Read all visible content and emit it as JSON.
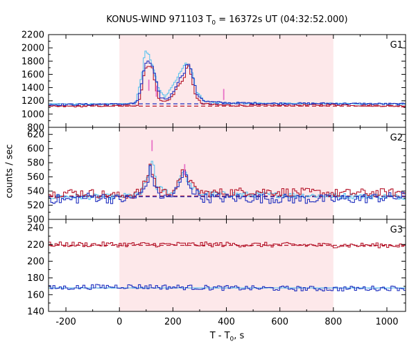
{
  "chart_data": {
    "type": "line",
    "title_main": "KONUS-WIND 971103 T",
    "title_sub": "0",
    "title_rest": " = 16372s UT (04:32:52.000)",
    "ylabel": "counts / sec",
    "xlabel_main": "T - T",
    "xlabel_sub": "0",
    "xlabel_rest": ", s",
    "xlim": [
      -265,
      1070
    ],
    "xticks": [
      -200,
      0,
      200,
      400,
      600,
      800,
      1000
    ],
    "shaded_interval": [
      0,
      800
    ],
    "shade_color": "#fde8ea",
    "colors": {
      "red": "#b5162b",
      "blue": "#1f2fbf",
      "cyan": "#5cc3ee",
      "magenta": "#e870c6"
    },
    "panels": [
      {
        "name": "G1",
        "ylim": [
          800,
          2200
        ],
        "yticks": [
          800,
          1000,
          1200,
          1400,
          1600,
          1800,
          2000,
          2200
        ],
        "bg_levels": {
          "red": 1120,
          "blue": 1155
        },
        "red_points": [
          [
            -265,
            1110
          ],
          [
            -150,
            1120
          ],
          [
            -50,
            1125
          ],
          [
            0,
            1125
          ],
          [
            50,
            1130
          ],
          [
            70,
            1140
          ],
          [
            85,
            1400
          ],
          [
            95,
            1700
          ],
          [
            110,
            1730
          ],
          [
            125,
            1680
          ],
          [
            135,
            1420
          ],
          [
            150,
            1200
          ],
          [
            175,
            1190
          ],
          [
            200,
            1270
          ],
          [
            215,
            1400
          ],
          [
            230,
            1480
          ],
          [
            245,
            1560
          ],
          [
            255,
            1780
          ],
          [
            270,
            1560
          ],
          [
            285,
            1250
          ],
          [
            310,
            1160
          ],
          [
            350,
            1140
          ],
          [
            420,
            1130
          ],
          [
            600,
            1130
          ],
          [
            800,
            1140
          ],
          [
            1070,
            1120
          ]
        ],
        "blue_points": [
          [
            -265,
            1140
          ],
          [
            -150,
            1145
          ],
          [
            -50,
            1150
          ],
          [
            0,
            1150
          ],
          [
            50,
            1160
          ],
          [
            70,
            1200
          ],
          [
            85,
            1500
          ],
          [
            95,
            1760
          ],
          [
            110,
            1800
          ],
          [
            125,
            1700
          ],
          [
            140,
            1460
          ],
          [
            155,
            1240
          ],
          [
            180,
            1230
          ],
          [
            200,
            1320
          ],
          [
            215,
            1460
          ],
          [
            230,
            1560
          ],
          [
            245,
            1640
          ],
          [
            255,
            1800
          ],
          [
            270,
            1640
          ],
          [
            290,
            1300
          ],
          [
            320,
            1190
          ],
          [
            400,
            1170
          ],
          [
            600,
            1160
          ],
          [
            800,
            1160
          ],
          [
            1070,
            1150
          ]
        ],
        "cyan_points": [
          [
            -265,
            1150
          ],
          [
            -100,
            1150
          ],
          [
            0,
            1150
          ],
          [
            60,
            1165
          ],
          [
            85,
            1600
          ],
          [
            95,
            1970
          ],
          [
            110,
            1900
          ],
          [
            125,
            1720
          ],
          [
            145,
            1400
          ],
          [
            170,
            1250
          ],
          [
            210,
            1500
          ],
          [
            230,
            1650
          ],
          [
            250,
            1780
          ],
          [
            270,
            1660
          ],
          [
            290,
            1330
          ],
          [
            320,
            1190
          ],
          [
            400,
            1165
          ],
          [
            800,
            1160
          ],
          [
            1070,
            1150
          ]
        ],
        "magenta_spikes": [
          [
            110,
            1520
          ],
          [
            138,
            1430
          ],
          [
            390,
            1380
          ]
        ]
      },
      {
        "name": "G2",
        "ylim": [
          500,
          630
        ],
        "yticks": [
          500,
          520,
          540,
          560,
          580,
          600,
          620
        ],
        "bg_levels": {
          "red": 533,
          "blue": 532
        },
        "red_points": [
          [
            -265,
            535
          ],
          [
            -200,
            538
          ],
          [
            -100,
            537
          ],
          [
            0,
            533
          ],
          [
            50,
            535
          ],
          [
            80,
            540
          ],
          [
            100,
            555
          ],
          [
            115,
            575
          ],
          [
            125,
            565
          ],
          [
            140,
            545
          ],
          [
            170,
            538
          ],
          [
            200,
            540
          ],
          [
            230,
            555
          ],
          [
            240,
            575
          ],
          [
            255,
            560
          ],
          [
            280,
            543
          ],
          [
            320,
            537
          ],
          [
            500,
            540
          ],
          [
            800,
            537
          ],
          [
            1070,
            538
          ]
        ],
        "blue_points": [
          [
            -265,
            530
          ],
          [
            -200,
            527
          ],
          [
            -100,
            532
          ],
          [
            0,
            528
          ],
          [
            50,
            530
          ],
          [
            80,
            535
          ],
          [
            100,
            548
          ],
          [
            115,
            570
          ],
          [
            125,
            560
          ],
          [
            140,
            538
          ],
          [
            170,
            530
          ],
          [
            200,
            535
          ],
          [
            230,
            550
          ],
          [
            240,
            570
          ],
          [
            255,
            555
          ],
          [
            280,
            538
          ],
          [
            320,
            530
          ],
          [
            500,
            530
          ],
          [
            800,
            528
          ],
          [
            1070,
            532
          ]
        ],
        "cyan_points": [
          [
            -265,
            532
          ],
          [
            0,
            532
          ],
          [
            80,
            536
          ],
          [
            110,
            565
          ],
          [
            125,
            585
          ],
          [
            140,
            545
          ],
          [
            200,
            536
          ],
          [
            240,
            572
          ],
          [
            260,
            550
          ],
          [
            300,
            536
          ],
          [
            1070,
            532
          ]
        ],
        "magenta_spikes": [
          [
            122,
            612
          ],
          [
            244,
            578
          ]
        ]
      },
      {
        "name": "G3",
        "ylim": [
          140,
          250
        ],
        "yticks": [
          140,
          160,
          180,
          200,
          220,
          240
        ],
        "bg_levels": {
          "red": 219,
          "blue": 168
        },
        "red_points": [
          [
            -265,
            220
          ],
          [
            0,
            220
          ],
          [
            400,
            220
          ],
          [
            800,
            219
          ],
          [
            1070,
            219
          ]
        ],
        "blue_points": [
          [
            -265,
            168
          ],
          [
            0,
            170
          ],
          [
            400,
            168
          ],
          [
            800,
            167
          ],
          [
            1070,
            168
          ]
        ],
        "cyan_points": [
          [
            -265,
            168
          ],
          [
            1070,
            168
          ]
        ],
        "magenta_spikes": []
      }
    ]
  }
}
